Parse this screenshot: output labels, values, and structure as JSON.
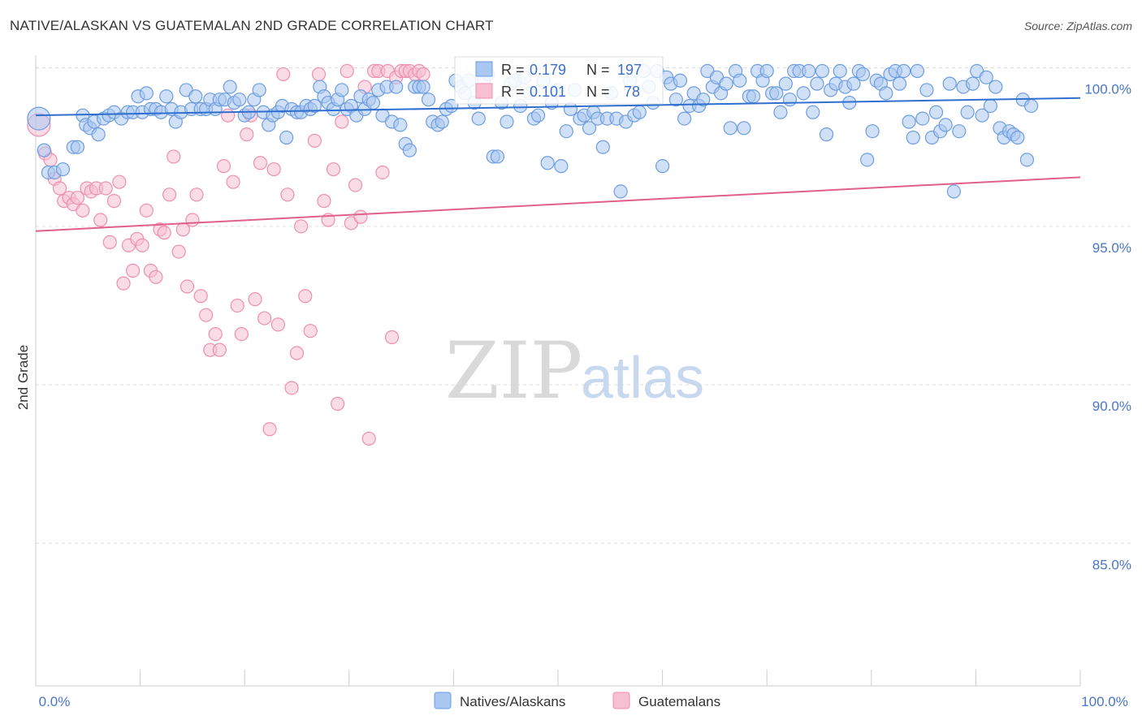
{
  "title": "NATIVE/ALASKAN VS GUATEMALAN 2ND GRADE CORRELATION CHART",
  "source": "Source: ZipAtlas.com",
  "watermark": {
    "zip": "ZIP",
    "atlas": "atlas"
  },
  "colors": {
    "blue_fill": "#a9c7f0",
    "blue_stroke": "#6d9de0",
    "blue_line": "#2f6fd0",
    "pink_fill": "#f6c0d2",
    "pink_stroke": "#ee8fb0",
    "pink_line": "#e0608a",
    "grid": "#dddddd",
    "axis_text": "#4a76c8"
  },
  "chart_data": {
    "type": "scatter",
    "title": "NATIVE/ALASKAN VS GUATEMALAN 2ND GRADE CORRELATION CHART",
    "xlabel": "",
    "ylabel": "2nd Grade",
    "xlim": [
      0,
      100
    ],
    "ylim": [
      80.5,
      100.4
    ],
    "x_tick_labels": [
      "0.0%",
      "100.0%"
    ],
    "y_ticks": [
      85,
      90,
      95,
      100
    ],
    "y_tick_labels": [
      "85.0%",
      "90.0%",
      "95.0%",
      "100.0%"
    ],
    "grid": true,
    "legend_position": "bottom-center",
    "stats": [
      {
        "series": "Natives/Alaskans",
        "r_label": "R =",
        "r_value": "0.179",
        "n_label": "N =",
        "n_value": "197"
      },
      {
        "series": "Guatemalans",
        "r_label": "R =",
        "r_value": "0.101",
        "n_label": "N =",
        "n_value": "78"
      }
    ],
    "series": [
      {
        "name": "Natives/Alaskans",
        "trend": {
          "x": [
            0,
            100
          ],
          "y": [
            98.5,
            99.05
          ]
        },
        "points": [
          [
            0.3,
            98.4
          ],
          [
            0.8,
            97.4
          ],
          [
            1.2,
            96.7
          ],
          [
            1.8,
            96.7
          ],
          [
            2.6,
            96.8
          ],
          [
            3.6,
            97.5
          ],
          [
            4,
            97.5
          ],
          [
            4.5,
            98.5
          ],
          [
            4.8,
            98.2
          ],
          [
            5.2,
            98.1
          ],
          [
            5.6,
            98.3
          ],
          [
            6,
            97.9
          ],
          [
            6.5,
            98.4
          ],
          [
            7,
            98.5
          ],
          [
            7.5,
            98.6
          ],
          [
            8.2,
            98.4
          ],
          [
            8.8,
            98.6
          ],
          [
            9.3,
            98.6
          ],
          [
            9.8,
            99.1
          ],
          [
            10.2,
            98.6
          ],
          [
            10.6,
            99.2
          ],
          [
            11,
            98.7
          ],
          [
            11.5,
            98.7
          ],
          [
            12,
            98.6
          ],
          [
            12.5,
            99.1
          ],
          [
            13,
            98.7
          ],
          [
            13.4,
            98.3
          ],
          [
            13.9,
            98.6
          ],
          [
            14.4,
            99.3
          ],
          [
            14.9,
            98.7
          ],
          [
            15.3,
            99.1
          ],
          [
            15.8,
            98.7
          ],
          [
            16.3,
            98.7
          ],
          [
            16.7,
            99
          ],
          [
            17.2,
            98.7
          ],
          [
            17.6,
            99
          ],
          [
            18.1,
            99
          ],
          [
            18.6,
            99.4
          ],
          [
            19,
            98.9
          ],
          [
            19.5,
            99
          ],
          [
            20,
            98.5
          ],
          [
            20.4,
            98.6
          ],
          [
            20.9,
            99
          ],
          [
            21.4,
            99.3
          ],
          [
            21.8,
            98.6
          ],
          [
            22.3,
            98.2
          ],
          [
            22.7,
            98.5
          ],
          [
            23.2,
            98.6
          ],
          [
            23.6,
            98.8
          ],
          [
            24,
            97.8
          ],
          [
            24.5,
            98.7
          ],
          [
            25,
            98.6
          ],
          [
            25.4,
            98.6
          ],
          [
            25.9,
            98.8
          ],
          [
            26.3,
            98.7
          ],
          [
            26.7,
            98.8
          ],
          [
            27.2,
            99.4
          ],
          [
            27.6,
            99.1
          ],
          [
            28,
            98.9
          ],
          [
            28.5,
            98.7
          ],
          [
            28.9,
            99
          ],
          [
            29.3,
            99.3
          ],
          [
            29.8,
            98.7
          ],
          [
            30.2,
            98.8
          ],
          [
            30.7,
            98.5
          ],
          [
            31.1,
            99.1
          ],
          [
            31.5,
            98.7
          ],
          [
            31.9,
            99
          ],
          [
            32.3,
            98.9
          ],
          [
            32.8,
            99.3
          ],
          [
            33.2,
            98.5
          ],
          [
            33.6,
            99.4
          ],
          [
            34.1,
            98.3
          ],
          [
            34.5,
            99.4
          ],
          [
            34.9,
            98.2
          ],
          [
            35.4,
            97.6
          ],
          [
            35.8,
            97.4
          ],
          [
            36.3,
            99.4
          ],
          [
            36.7,
            99.4
          ],
          [
            37.1,
            99.4
          ],
          [
            37.6,
            99
          ],
          [
            38,
            98.3
          ],
          [
            38.5,
            98.2
          ],
          [
            38.9,
            98.3
          ],
          [
            39.3,
            98.7
          ],
          [
            39.8,
            98.8
          ],
          [
            40.2,
            99.6
          ],
          [
            40.7,
            99.4
          ],
          [
            41.1,
            99.2
          ],
          [
            41.5,
            99.6
          ],
          [
            42,
            98.9
          ],
          [
            42.4,
            98.4
          ],
          [
            42.9,
            99.6
          ],
          [
            43.3,
            99.8
          ],
          [
            43.8,
            97.2
          ],
          [
            44.2,
            97.2
          ],
          [
            44.6,
            98.9
          ],
          [
            45.1,
            98.3
          ],
          [
            45.5,
            99.5
          ],
          [
            45.9,
            99.6
          ],
          [
            46.4,
            98.8
          ],
          [
            46.8,
            99.7
          ],
          [
            47.3,
            99.2
          ],
          [
            47.7,
            98.4
          ],
          [
            48.1,
            98.5
          ],
          [
            48.6,
            99.6
          ],
          [
            49,
            97
          ],
          [
            49.4,
            98.9
          ],
          [
            49.9,
            99.3
          ],
          [
            50.3,
            96.9
          ],
          [
            50.8,
            98
          ],
          [
            51.2,
            98.7
          ],
          [
            51.6,
            99.3
          ],
          [
            52.1,
            98.4
          ],
          [
            52.5,
            98.5
          ],
          [
            53,
            98.1
          ],
          [
            53.4,
            98.6
          ],
          [
            53.8,
            98.4
          ],
          [
            54.3,
            97.5
          ],
          [
            54.7,
            98.4
          ],
          [
            55.1,
            99.2
          ],
          [
            55.6,
            98.4
          ],
          [
            56,
            96.1
          ],
          [
            56.5,
            98.3
          ],
          [
            56.9,
            99.6
          ],
          [
            57.3,
            98.5
          ],
          [
            57.8,
            98.6
          ],
          [
            58.2,
            99.9
          ],
          [
            58.7,
            99.4
          ],
          [
            59.1,
            98.9
          ],
          [
            59.5,
            99.9
          ],
          [
            60,
            96.9
          ],
          [
            60.4,
            99.7
          ],
          [
            60.8,
            99.5
          ],
          [
            61.3,
            99
          ],
          [
            61.7,
            99.6
          ],
          [
            62.1,
            98.4
          ],
          [
            62.6,
            98.8
          ],
          [
            63,
            99.2
          ],
          [
            63.5,
            98.8
          ],
          [
            63.9,
            99
          ],
          [
            64.3,
            99.9
          ],
          [
            64.8,
            99.4
          ],
          [
            65.2,
            99.7
          ],
          [
            65.6,
            99.2
          ],
          [
            66.1,
            99.5
          ],
          [
            66.5,
            98.1
          ],
          [
            67,
            99.9
          ],
          [
            67.4,
            99.6
          ],
          [
            67.8,
            98.1
          ],
          [
            68.3,
            99.1
          ],
          [
            68.7,
            99.1
          ],
          [
            69.1,
            99.9
          ],
          [
            69.6,
            99.6
          ],
          [
            70,
            99.9
          ],
          [
            70.5,
            99.2
          ],
          [
            70.9,
            99.2
          ],
          [
            71.3,
            98.6
          ],
          [
            71.8,
            99.5
          ],
          [
            72.2,
            99
          ],
          [
            72.6,
            99.9
          ],
          [
            73.1,
            99.9
          ],
          [
            73.5,
            99.2
          ],
          [
            74,
            99.9
          ],
          [
            74.4,
            98.6
          ],
          [
            74.8,
            99.5
          ],
          [
            75.3,
            99.9
          ],
          [
            75.7,
            97.9
          ],
          [
            76.1,
            99.3
          ],
          [
            76.6,
            99.5
          ],
          [
            77,
            99.9
          ],
          [
            77.5,
            99.4
          ],
          [
            77.9,
            98.9
          ],
          [
            78.3,
            99.5
          ],
          [
            78.8,
            99.9
          ],
          [
            79.2,
            99.8
          ],
          [
            79.6,
            97.1
          ],
          [
            80.1,
            98
          ],
          [
            80.5,
            99.6
          ],
          [
            80.9,
            99.5
          ],
          [
            81.4,
            99.2
          ],
          [
            81.8,
            99.8
          ],
          [
            82.3,
            99.9
          ],
          [
            82.7,
            99.5
          ],
          [
            83.1,
            99.9
          ],
          [
            83.6,
            98.3
          ],
          [
            84,
            97.8
          ],
          [
            84.4,
            99.9
          ],
          [
            84.9,
            98.4
          ],
          [
            85.3,
            99.3
          ],
          [
            85.8,
            97.8
          ],
          [
            86.2,
            98.6
          ],
          [
            86.6,
            98
          ],
          [
            87.1,
            98.2
          ],
          [
            87.5,
            99.5
          ],
          [
            87.9,
            96.1
          ],
          [
            88.4,
            98
          ],
          [
            88.8,
            99.4
          ],
          [
            89.2,
            98.6
          ],
          [
            89.7,
            99.5
          ],
          [
            90.1,
            99.9
          ],
          [
            90.6,
            98.5
          ],
          [
            91,
            99.7
          ],
          [
            91.4,
            98.8
          ],
          [
            91.9,
            99.4
          ],
          [
            92.3,
            98.1
          ],
          [
            92.7,
            97.8
          ],
          [
            93.2,
            98
          ],
          [
            93.6,
            97.9
          ],
          [
            94,
            97.8
          ],
          [
            94.5,
            99
          ],
          [
            94.9,
            97.1
          ],
          [
            95.3,
            98.8
          ]
        ]
      },
      {
        "name": "Guatemalans",
        "trend": {
          "x": [
            0,
            100
          ],
          "y": [
            94.85,
            96.55
          ]
        },
        "points": [
          [
            0.3,
            98.2
          ],
          [
            0.9,
            97.3
          ],
          [
            1.4,
            97.1
          ],
          [
            1.8,
            96.5
          ],
          [
            2.3,
            96.2
          ],
          [
            2.7,
            95.8
          ],
          [
            3.2,
            95.9
          ],
          [
            3.6,
            95.7
          ],
          [
            4,
            95.9
          ],
          [
            4.5,
            95.5
          ],
          [
            4.9,
            96.2
          ],
          [
            5.3,
            96.1
          ],
          [
            5.8,
            96.2
          ],
          [
            6.2,
            95.2
          ],
          [
            6.7,
            96.2
          ],
          [
            7.1,
            94.5
          ],
          [
            7.5,
            95.8
          ],
          [
            8,
            96.4
          ],
          [
            8.4,
            93.2
          ],
          [
            8.9,
            94.4
          ],
          [
            9.3,
            93.6
          ],
          [
            9.7,
            94.6
          ],
          [
            10.2,
            94.4
          ],
          [
            10.6,
            95.5
          ],
          [
            11,
            93.6
          ],
          [
            11.5,
            93.4
          ],
          [
            11.9,
            94.9
          ],
          [
            12.3,
            94.8
          ],
          [
            12.8,
            96
          ],
          [
            13.2,
            97.2
          ],
          [
            13.7,
            94.2
          ],
          [
            14.1,
            94.9
          ],
          [
            14.5,
            93.1
          ],
          [
            15,
            95.2
          ],
          [
            15.4,
            96
          ],
          [
            15.8,
            92.8
          ],
          [
            16.3,
            92.2
          ],
          [
            16.7,
            91.1
          ],
          [
            17.2,
            91.6
          ],
          [
            17.6,
            91.1
          ],
          [
            18,
            96.9
          ],
          [
            18.4,
            98.5
          ],
          [
            18.9,
            96.4
          ],
          [
            19.3,
            92.5
          ],
          [
            19.7,
            91.6
          ],
          [
            20.2,
            97.9
          ],
          [
            20.6,
            98.5
          ],
          [
            21,
            92.7
          ],
          [
            21.5,
            97
          ],
          [
            21.9,
            92.1
          ],
          [
            22.4,
            88.6
          ],
          [
            22.8,
            96.8
          ],
          [
            23.2,
            91.9
          ],
          [
            23.7,
            99.8
          ],
          [
            24.1,
            96
          ],
          [
            24.5,
            89.9
          ],
          [
            25,
            91
          ],
          [
            25.4,
            95
          ],
          [
            25.8,
            92.8
          ],
          [
            26.3,
            91.7
          ],
          [
            26.7,
            97.7
          ],
          [
            27.1,
            99.8
          ],
          [
            27.6,
            95.8
          ],
          [
            28,
            95.2
          ],
          [
            28.5,
            96.8
          ],
          [
            28.9,
            89.4
          ],
          [
            29.3,
            98.3
          ],
          [
            29.8,
            99.9
          ],
          [
            30.2,
            95.1
          ],
          [
            30.6,
            96.3
          ],
          [
            31.1,
            95.3
          ],
          [
            31.5,
            99.4
          ],
          [
            31.9,
            88.3
          ],
          [
            32.4,
            99.9
          ],
          [
            32.8,
            99.9
          ],
          [
            33.2,
            96.7
          ],
          [
            33.7,
            99.9
          ],
          [
            34.1,
            91.5
          ],
          [
            34.5,
            99.7
          ],
          [
            35,
            99.9
          ],
          [
            35.4,
            99.9
          ],
          [
            35.8,
            99.9
          ],
          [
            36.3,
            99.8
          ],
          [
            36.7,
            99.9
          ],
          [
            37.1,
            99.8
          ]
        ]
      }
    ]
  },
  "legend": {
    "items": [
      {
        "label": "Natives/Alaskans",
        "color_key": "blue"
      },
      {
        "label": "Guatemalans",
        "color_key": "pink"
      }
    ]
  }
}
